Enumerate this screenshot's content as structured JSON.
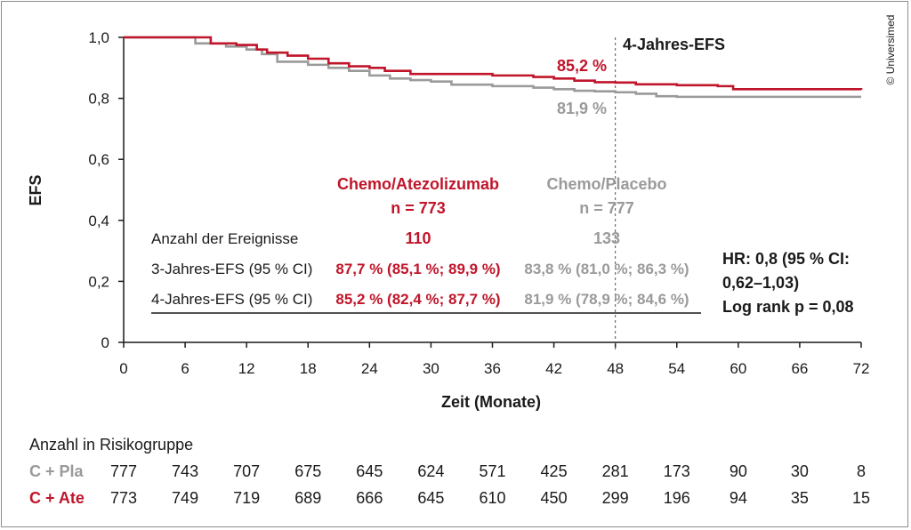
{
  "chart_data": {
    "type": "line",
    "ylabel": "EFS",
    "xlabel": "Zeit (Monate)",
    "ylim": [
      0,
      1.0
    ],
    "xlim": [
      0,
      72
    ],
    "y_ticks": [
      "0",
      "0,2",
      "0,4",
      "0,6",
      "0,8",
      "1,0"
    ],
    "y_tick_values": [
      0,
      0.2,
      0.4,
      0.6,
      0.8,
      1.0
    ],
    "x_ticks": [
      "0",
      "6",
      "12",
      "18",
      "24",
      "30",
      "36",
      "42",
      "48",
      "54",
      "60",
      "66",
      "72"
    ],
    "x_tick_values": [
      0,
      6,
      12,
      18,
      24,
      30,
      36,
      42,
      48,
      54,
      60,
      66,
      72
    ],
    "grid": false,
    "colors": {
      "ate": "#c0152a",
      "pla": "#9a9a9a",
      "text": "#1a1a1a"
    },
    "series": [
      {
        "key": "ate",
        "values": [
          [
            0,
            1.0
          ],
          [
            7,
            1.0
          ],
          [
            8.5,
            0.98
          ],
          [
            11,
            0.975
          ],
          [
            13,
            0.96
          ],
          [
            14,
            0.95
          ],
          [
            16,
            0.94
          ],
          [
            18,
            0.93
          ],
          [
            20,
            0.915
          ],
          [
            22,
            0.905
          ],
          [
            24,
            0.9
          ],
          [
            25.5,
            0.89
          ],
          [
            28,
            0.88
          ],
          [
            33,
            0.88
          ],
          [
            36,
            0.875
          ],
          [
            40,
            0.87
          ],
          [
            42,
            0.865
          ],
          [
            44,
            0.858
          ],
          [
            46,
            0.853
          ],
          [
            48,
            0.852
          ],
          [
            50,
            0.846
          ],
          [
            54,
            0.843
          ],
          [
            58,
            0.84
          ],
          [
            59.5,
            0.83
          ],
          [
            72,
            0.828
          ]
        ]
      },
      {
        "key": "pla",
        "values": [
          [
            0,
            1.0
          ],
          [
            6,
            1.0
          ],
          [
            7,
            0.98
          ],
          [
            10,
            0.97
          ],
          [
            12,
            0.96
          ],
          [
            13.5,
            0.945
          ],
          [
            15,
            0.92
          ],
          [
            18,
            0.91
          ],
          [
            20,
            0.9
          ],
          [
            22,
            0.89
          ],
          [
            24,
            0.875
          ],
          [
            26,
            0.865
          ],
          [
            28,
            0.86
          ],
          [
            30,
            0.855
          ],
          [
            32,
            0.845
          ],
          [
            36,
            0.84
          ],
          [
            40,
            0.835
          ],
          [
            42,
            0.83
          ],
          [
            44,
            0.825
          ],
          [
            46,
            0.823
          ],
          [
            48,
            0.82
          ],
          [
            50,
            0.815
          ],
          [
            52,
            0.807
          ],
          [
            54,
            0.805
          ],
          [
            72,
            0.805
          ]
        ]
      }
    ],
    "reference_line": {
      "x": 48,
      "label": "4-Jahres-EFS"
    },
    "annotations": {
      "ate_4y": "85,2 %",
      "pla_4y": "81,9 %"
    },
    "table": {
      "header_ate": "Chemo/Atezolizumab",
      "n_ate": "n = 773",
      "header_pla": "Chemo/Placebo",
      "n_pla": "n = 777",
      "rows": [
        {
          "label": "Anzahl der Ereignisse",
          "ate": "110",
          "pla": "133"
        },
        {
          "label": "3-Jahres-EFS (95 % CI)",
          "ate": "87,7 % (85,1 %; 89,9 %)",
          "pla": "83,8 % (81,0 %; 86,3 %)"
        },
        {
          "label": "4-Jahres-EFS (95 % CI)",
          "ate": "85,2 % (82,4 %; 87,7 %)",
          "pla": "81,9 % (78,9 %; 84,6 %)"
        }
      ]
    },
    "hr_lines": [
      "HR: 0,8 (95 % CI:",
      "0,62–1,03)",
      "Log rank p = 0,08"
    ],
    "risk_table": {
      "title": "Anzahl in Risikogruppe",
      "rows": [
        {
          "key": "pla",
          "label": "C + Pla",
          "values": [
            "777",
            "743",
            "707",
            "675",
            "645",
            "624",
            "571",
            "425",
            "281",
            "173",
            "90",
            "30",
            "8"
          ]
        },
        {
          "key": "ate",
          "label": "C + Ate",
          "values": [
            "773",
            "749",
            "719",
            "689",
            "666",
            "645",
            "610",
            "450",
            "299",
            "196",
            "94",
            "35",
            "15"
          ]
        }
      ]
    }
  },
  "copyright": "© Universimed"
}
